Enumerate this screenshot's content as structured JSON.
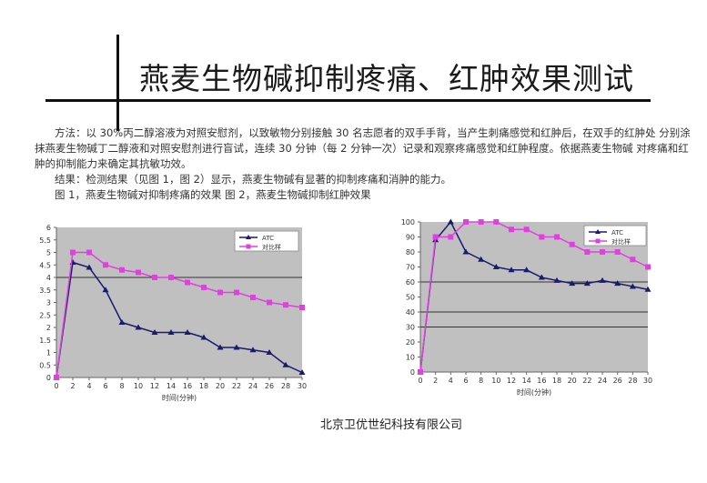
{
  "header": {
    "title": "燕麦生物碱抑制疼痛、红肿效果测试"
  },
  "body": {
    "method": "方法：以 30%丙二醇溶液为对照安慰剂，以致敏物分别接触 30 名志愿者的双手手背，当产生刺痛感觉和红肿后，在双手的红肿处 分别涂抹燕麦生物碱丁二醇液和对照安慰剂进行盲试，连续 30 分钟（每 2 分钟一次）记录和观察疼痛感觉和红肿程度。依据燕麦生物碱 对疼痛和红肿的抑制能力来确定其抗敏功效。",
    "result": "结果：检测结果（见图 1，图 2）显示，燕麦生物碱有显著的抑制疼痛和消肿的能力。",
    "captions": "图 1，燕麦生物碱对抑制疼痛的效果 图 2，燕麦生物碱抑制红肿效果"
  },
  "footer": {
    "company": "北京卫优世纪科技有限公司"
  },
  "colors": {
    "plot_bg": "#c0c0c0",
    "series_atc": "#1a1a6e",
    "series_control": "#e040e0",
    "ref_line": "#333333"
  },
  "chart_data": [
    {
      "type": "line",
      "x": [
        0,
        2,
        4,
        6,
        8,
        10,
        12,
        14,
        16,
        18,
        20,
        22,
        24,
        26,
        28,
        30
      ],
      "tick_labels": [
        "0",
        "2",
        "4",
        "6",
        "8",
        "10",
        "12",
        "14",
        "16",
        "18",
        "20",
        "22",
        "24",
        "26",
        "28",
        "30"
      ],
      "xlabel": "时间(分钟)",
      "ylabel": "",
      "ylim": [
        0,
        6
      ],
      "yticks": [
        0,
        0.5,
        1,
        1.5,
        2,
        2.5,
        3,
        3.5,
        4,
        4.5,
        5,
        5.5,
        6
      ],
      "ytick_labels": [
        "0",
        "0.5",
        "1",
        "1.5",
        "2",
        "2.5",
        "3",
        "3.5",
        "4",
        "4.5",
        "5",
        "5.5",
        "6"
      ],
      "grid_lines": [
        4
      ],
      "series": [
        {
          "name": "ATC",
          "marker": "triangle",
          "values": [
            0,
            4.6,
            4.4,
            3.5,
            2.2,
            2.0,
            1.8,
            1.8,
            1.8,
            1.6,
            1.2,
            1.2,
            1.1,
            1.0,
            0.5,
            0.2
          ]
        },
        {
          "name": "对比样",
          "marker": "square",
          "values": [
            0,
            5.0,
            5.0,
            4.5,
            4.3,
            4.2,
            4.0,
            4.0,
            3.8,
            3.6,
            3.4,
            3.4,
            3.2,
            3.0,
            2.9,
            2.8
          ]
        }
      ],
      "legend": "top-right"
    },
    {
      "type": "line",
      "x": [
        0,
        2,
        4,
        6,
        8,
        10,
        12,
        14,
        16,
        18,
        20,
        22,
        24,
        26,
        28,
        30
      ],
      "tick_labels": [
        "0",
        "2",
        "4",
        "6",
        "8",
        "10",
        "12",
        "14",
        "16",
        "18",
        "20",
        "22",
        "24",
        "26",
        "28",
        "30"
      ],
      "xlabel": "时间(分钟)",
      "ylabel": "",
      "ylim": [
        0,
        100
      ],
      "yticks": [
        0,
        10,
        20,
        30,
        40,
        50,
        60,
        70,
        80,
        90,
        100
      ],
      "ytick_labels": [
        "0",
        "10",
        "20",
        "30",
        "40",
        "50",
        "60",
        "70",
        "80",
        "90",
        "100"
      ],
      "grid_lines": [
        30,
        40,
        60
      ],
      "series": [
        {
          "name": "ATC",
          "marker": "triangle",
          "values": [
            0,
            88,
            100,
            80,
            75,
            70,
            68,
            68,
            63,
            61,
            59,
            59,
            61,
            59,
            57,
            55
          ]
        },
        {
          "name": "对比样",
          "marker": "square",
          "values": [
            0,
            90,
            90,
            100,
            100,
            100,
            95,
            95,
            90,
            90,
            85,
            80,
            80,
            80,
            75,
            70
          ]
        }
      ],
      "legend": "top-right"
    }
  ]
}
